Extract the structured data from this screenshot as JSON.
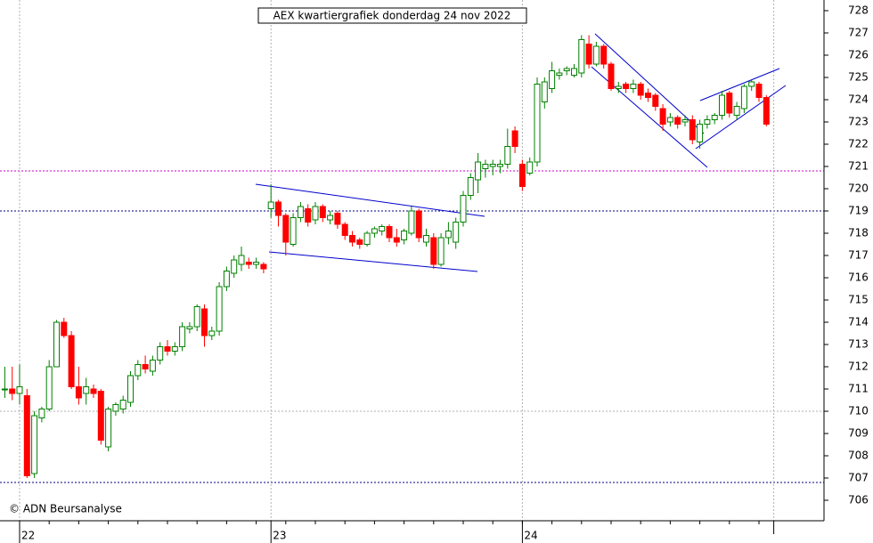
{
  "chart_data": {
    "type": "candlestick",
    "title": "AEX kwartiergrafiek donderdag 24 nov 2022",
    "annotation": "© ADN Beursanalyse",
    "categories": [
      null,
      null,
      "22",
      null,
      null,
      null,
      null,
      null,
      null,
      null,
      null,
      null,
      null,
      null,
      null,
      null,
      null,
      null,
      null,
      null,
      null,
      null,
      null,
      null,
      null,
      null,
      null,
      null,
      null,
      null,
      null,
      null,
      null,
      null,
      null,
      null,
      "23",
      null,
      null,
      null,
      null,
      null,
      null,
      null,
      null,
      null,
      null,
      null,
      null,
      null,
      null,
      null,
      null,
      null,
      null,
      null,
      null,
      null,
      null,
      null,
      null,
      null,
      null,
      null,
      null,
      null,
      null,
      null,
      null,
      null,
      "24",
      null,
      null,
      null,
      null,
      null,
      null,
      null,
      null,
      null,
      null,
      null,
      null,
      null,
      null,
      null,
      null,
      null,
      null,
      null,
      null,
      null,
      null,
      null,
      null,
      null,
      null,
      null,
      null,
      null,
      null,
      null,
      null,
      null
    ],
    "open": [
      711,
      711,
      710.8,
      710.7,
      707.2,
      709.7,
      710.1,
      712,
      714,
      713.4,
      711.1,
      710.8,
      711,
      710.9,
      708.4,
      710,
      710.1,
      710.4,
      711.6,
      712.1,
      711.8,
      712.3,
      712.9,
      712.7,
      712.9,
      713.7,
      713.8,
      714.6,
      713.4,
      713.6,
      715.6,
      716.2,
      716.6,
      716.7,
      716.6,
      716.6,
      719.1,
      719.4,
      718.8,
      717.5,
      718.7,
      719.1,
      718.6,
      719.2,
      718.6,
      718.9,
      718.4,
      717.9,
      717.7,
      717.5,
      718,
      718.1,
      718.3,
      717.8,
      717.7,
      718,
      719,
      717.6,
      717.8,
      716.6,
      717.8,
      717.6,
      718.5,
      719.7,
      720.4,
      720.9,
      721,
      721,
      721.1,
      722.6,
      721.1,
      720.7,
      721.2,
      723.9,
      724.5,
      725.1,
      725.3,
      725.1,
      725.2,
      726.5,
      725.6,
      726.4,
      725.6,
      724.5,
      724.7,
      724.5,
      724.7,
      724.3,
      724.2,
      723.6,
      723,
      723.2,
      723,
      723.1,
      722.1,
      722.9,
      723.1,
      723.3,
      724.3,
      723.3,
      723.6,
      724.6,
      724.7,
      724.1
    ],
    "high": [
      712,
      712,
      712.1,
      711,
      710,
      710.2,
      712.3,
      714.1,
      714.2,
      713.6,
      712,
      711.5,
      711.2,
      711,
      710.2,
      710.4,
      710.7,
      711.8,
      712.3,
      712.5,
      712.5,
      713.1,
      713.2,
      713.1,
      714,
      714,
      714.8,
      714.8,
      713.8,
      715.8,
      716.5,
      717,
      717.4,
      716.9,
      716.9,
      716.7,
      720.2,
      719.5,
      718.9,
      718.9,
      719.4,
      719.3,
      719.4,
      719.3,
      719,
      719,
      718.5,
      718.1,
      717.8,
      718.1,
      718.3,
      718.4,
      718.4,
      718.2,
      718.2,
      719.2,
      719.1,
      718.2,
      718,
      718,
      718.5,
      718.7,
      719.9,
      720.7,
      721.6,
      721.3,
      721.3,
      721.3,
      722.7,
      722.8,
      721.3,
      721.4,
      725,
      725,
      725.7,
      725.4,
      725.5,
      725.6,
      726.9,
      726.9,
      726.6,
      726.5,
      725.7,
      724.8,
      724.8,
      724.9,
      724.8,
      724.5,
      724.3,
      723.8,
      723.4,
      723.3,
      723.3,
      723.3,
      723.1,
      723.3,
      723.4,
      724.4,
      724.4,
      723.9,
      724.7,
      724.9,
      724.8,
      724.2
    ],
    "low": [
      710.6,
      710.5,
      710.3,
      707,
      707,
      709.5,
      710,
      712,
      713.3,
      711,
      710.3,
      710.3,
      710.6,
      708.5,
      708.2,
      709.8,
      709.9,
      710.2,
      711.4,
      711.7,
      711.6,
      712.1,
      712.5,
      712.5,
      712.7,
      713.5,
      713.6,
      712.9,
      713.2,
      713.4,
      715.4,
      716,
      716.3,
      716.4,
      716.4,
      716.2,
      718.7,
      718.3,
      717,
      717.4,
      718.5,
      718.3,
      718.4,
      718.5,
      718.4,
      718.2,
      717.7,
      717.4,
      717.3,
      717.4,
      717.8,
      717.9,
      717.6,
      717.4,
      717.5,
      717.9,
      717.6,
      717.4,
      716.4,
      716.5,
      717.5,
      717.3,
      718.3,
      719.5,
      719.8,
      720.5,
      720.6,
      720.7,
      720.9,
      721.6,
      719.9,
      720.6,
      721,
      723.6,
      724.3,
      724.9,
      725.1,
      725,
      725,
      725.4,
      725.5,
      725.4,
      724.4,
      724.3,
      724.3,
      724.3,
      724,
      723.9,
      723.5,
      722.6,
      722.8,
      722.7,
      722.8,
      722,
      721.8,
      722.7,
      722.9,
      723.1,
      723.2,
      723.1,
      723.4,
      724.4,
      723.9,
      722.8
    ],
    "close": [
      711,
      710.8,
      711.1,
      707.1,
      709.8,
      710.1,
      712,
      714,
      713.4,
      711.1,
      710.6,
      711.1,
      710.8,
      708.7,
      710.1,
      710.3,
      710.5,
      711.6,
      712.1,
      711.9,
      712.3,
      712.9,
      712.7,
      712.9,
      713.8,
      713.8,
      714.7,
      713.4,
      713.6,
      715.6,
      716.3,
      716.8,
      717,
      716.6,
      716.7,
      716.4,
      719.4,
      718.8,
      717.6,
      718.7,
      719.2,
      718.5,
      719.2,
      718.7,
      718.8,
      718.4,
      717.9,
      717.6,
      717.5,
      718,
      718.2,
      718.3,
      717.8,
      717.6,
      718.1,
      719,
      717.8,
      717.9,
      716.6,
      717.8,
      718.1,
      718.5,
      719.7,
      720.5,
      721.2,
      721.1,
      721.1,
      721.1,
      721.9,
      721.9,
      720.1,
      721.2,
      724.7,
      724.8,
      725.3,
      725.2,
      725.4,
      725.4,
      726.7,
      725.6,
      726.4,
      725.6,
      724.5,
      724.6,
      724.5,
      724.7,
      724.2,
      724.1,
      723.7,
      722.9,
      723.2,
      722.9,
      723.1,
      722.2,
      722.9,
      723.1,
      723.3,
      724.2,
      723.4,
      723.7,
      724.6,
      724.8,
      724.1,
      722.9
    ],
    "up_color": "#008000",
    "down_color": "#ff0000",
    "ylim": [
      705.08,
      728.48
    ],
    "yticks": [
      706,
      707,
      708,
      709,
      710,
      711,
      712,
      713,
      714,
      715,
      716,
      717,
      718,
      719,
      720,
      721,
      722,
      723,
      724,
      725,
      726,
      727,
      728
    ],
    "hlines": [
      {
        "value": 720.8,
        "color": "#cc00cc"
      },
      {
        "value": 719,
        "color": "#000080"
      },
      {
        "value": 706.8,
        "color": "#000080"
      },
      {
        "value": 710,
        "color": "#b0b0b0"
      }
    ],
    "grid": true
  }
}
